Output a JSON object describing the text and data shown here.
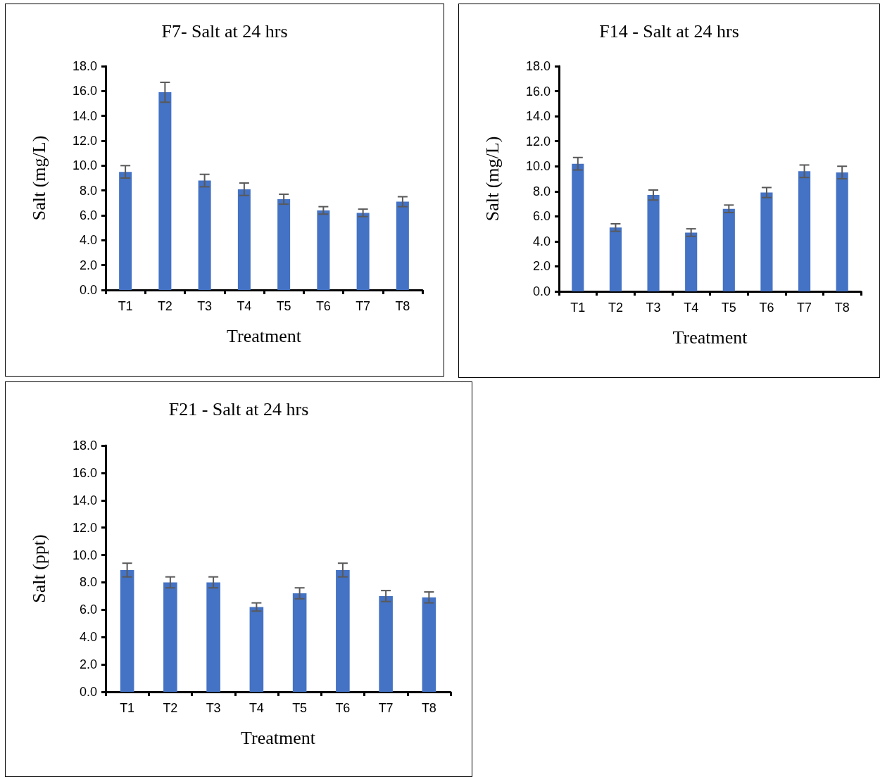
{
  "chart_data": [
    {
      "type": "bar",
      "title": "F7- Salt at 24 hrs",
      "xlabel": "Treatment",
      "ylabel": "Salt (mg/L)",
      "categories": [
        "T1",
        "T2",
        "T3",
        "T4",
        "T5",
        "T6",
        "T7",
        "T8"
      ],
      "series": [
        {
          "color": "#4472c4",
          "values": [
            9.5,
            15.9,
            8.8,
            8.1,
            7.3,
            6.4,
            6.2,
            7.1
          ],
          "errors": [
            0.5,
            0.8,
            0.5,
            0.5,
            0.4,
            0.3,
            0.3,
            0.4
          ]
        }
      ],
      "ylim": [
        0,
        18
      ],
      "yticks": [
        {
          "value": 0,
          "label": "0.0"
        },
        {
          "value": 2,
          "label": "2.0"
        },
        {
          "value": 4,
          "label": "4.0"
        },
        {
          "value": 6,
          "label": "6.0"
        },
        {
          "value": 8,
          "label": "8.0"
        },
        {
          "value": 10,
          "label": "10.0"
        },
        {
          "value": 12,
          "label": "12.0"
        },
        {
          "value": 14,
          "label": "14.0"
        },
        {
          "value": 16,
          "label": "16.0"
        },
        {
          "value": 18,
          "label": "18.0"
        }
      ],
      "grid": false
    },
    {
      "type": "bar",
      "title": "F14 - Salt at 24 hrs",
      "xlabel": "Treatment",
      "ylabel": "Salt (mg/L)",
      "categories": [
        "T1",
        "T2",
        "T3",
        "T4",
        "T5",
        "T6",
        "T7",
        "T8"
      ],
      "series": [
        {
          "color": "#4472c4",
          "values": [
            10.2,
            5.1,
            7.7,
            4.7,
            6.6,
            7.9,
            9.6,
            9.5
          ],
          "errors": [
            0.5,
            0.3,
            0.4,
            0.3,
            0.3,
            0.4,
            0.5,
            0.5
          ]
        }
      ],
      "ylim": [
        0,
        18
      ],
      "yticks": [
        {
          "value": 0,
          "label": "0.0"
        },
        {
          "value": 2,
          "label": "2.0"
        },
        {
          "value": 4,
          "label": "4.0"
        },
        {
          "value": 6,
          "label": "6.0"
        },
        {
          "value": 8,
          "label": "8.0"
        },
        {
          "value": 10,
          "label": "10.0"
        },
        {
          "value": 12,
          "label": "12.0"
        },
        {
          "value": 14,
          "label": "14.0"
        },
        {
          "value": 16,
          "label": "16.0"
        },
        {
          "value": 18,
          "label": "18.0"
        }
      ],
      "grid": false
    },
    {
      "type": "bar",
      "title": "F21 - Salt at 24 hrs",
      "xlabel": "Treatment",
      "ylabel": "Salt (ppt)",
      "categories": [
        "T1",
        "T2",
        "T3",
        "T4",
        "T5",
        "T6",
        "T7",
        "T8"
      ],
      "series": [
        {
          "color": "#4472c4",
          "values": [
            8.9,
            8.0,
            8.0,
            6.2,
            7.2,
            8.9,
            7.0,
            6.9
          ],
          "errors": [
            0.5,
            0.4,
            0.4,
            0.3,
            0.4,
            0.5,
            0.4,
            0.4
          ]
        }
      ],
      "ylim": [
        0,
        18
      ],
      "yticks": [
        {
          "value": 0,
          "label": "0.0"
        },
        {
          "value": 2,
          "label": "2.0"
        },
        {
          "value": 4,
          "label": "4.0"
        },
        {
          "value": 6,
          "label": "6.0"
        },
        {
          "value": 8,
          "label": "8.0"
        },
        {
          "value": 10,
          "label": "10.0"
        },
        {
          "value": 12,
          "label": "12.0"
        },
        {
          "value": 14,
          "label": "14.0"
        },
        {
          "value": 16,
          "label": "16.0"
        },
        {
          "value": 18,
          "label": "18.0"
        }
      ],
      "grid": false
    }
  ]
}
